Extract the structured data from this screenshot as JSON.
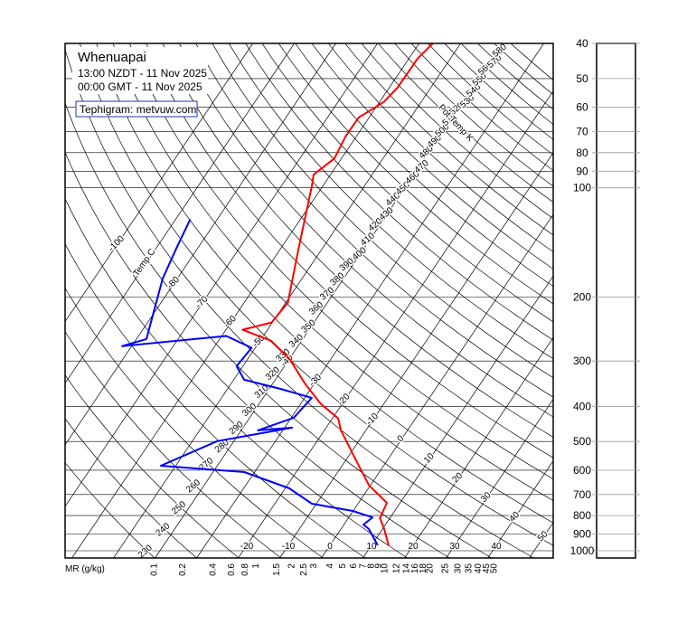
{
  "chart_data": {
    "type": "tephigram",
    "title": "Whenuapai",
    "subtitle": [
      "13:00 NZDT - 11 Nov 2025",
      "00:00 GMT - 11 Nov 2025"
    ],
    "source_label": "Tephigram: metvuw.com",
    "isotherm_title": "Temp C",
    "adiabat_title": "Pot Temp K",
    "mixing_ratio_title": "MR (g/kg)",
    "log_y": true,
    "ylim": [
      1047,
      40
    ],
    "yticks": [
      40,
      50,
      60,
      70,
      80,
      90,
      100,
      200,
      300,
      400,
      500,
      600,
      700,
      800,
      900,
      1000
    ],
    "isotherms": [
      -100,
      -90,
      -80,
      -70,
      -60,
      -50,
      -40,
      -30,
      -20,
      -10,
      0,
      10,
      20,
      30,
      40,
      50
    ],
    "dry_adiabats": [
      230,
      240,
      250,
      260,
      270,
      280,
      290,
      300,
      310,
      320,
      330,
      340,
      350,
      360,
      370,
      380,
      390,
      400,
      410,
      420,
      430,
      440,
      450,
      460,
      470,
      480,
      490,
      500,
      510,
      520,
      530,
      540,
      550,
      560,
      570,
      580,
      590
    ],
    "mixing_ratios": [
      0.1,
      0.2,
      0.4,
      0.6,
      0.8,
      1,
      1.5,
      2,
      2.5,
      3,
      4,
      5,
      6,
      7,
      8,
      9,
      10,
      12,
      14,
      16,
      18,
      20,
      25,
      30,
      35,
      40,
      45,
      50
    ],
    "series": [
      {
        "color": "#ff0000",
        "pressure": [
          966,
          871,
          813,
          738,
          661,
          560,
          466,
          432,
          394,
          348,
          296,
          264,
          246,
          235,
          207,
          147,
          98,
          92,
          83,
          72,
          64,
          58,
          53,
          44,
          40
        ],
        "values": [
          14.1,
          10.4,
          7.6,
          6.8,
          -0.3,
          -7.8,
          -16.0,
          -18.6,
          -25.1,
          -32.0,
          -40.0,
          -47.3,
          -56.0,
          -50.2,
          -49.5,
          -55.7,
          -62.8,
          -64.1,
          -61.7,
          -62.6,
          -62.5,
          -59.0,
          -58.0,
          -57.9,
          -56.7
        ]
      },
      {
        "color": "#0000ff",
        "pressure": [
          966,
          871,
          847,
          809,
          777,
          742,
          673,
          607,
          583,
          499,
          458,
          466,
          430,
          379,
          358,
          338,
          310,
          276,
          256,
          273,
          261,
          178,
          147,
          122
        ],
        "values": [
          11.5,
          6.7,
          4.7,
          5.7,
          -0.1,
          -11.1,
          -19.0,
          -32.5,
          -53.6,
          -44.0,
          -28.2,
          -36.0,
          -29.4,
          -28.3,
          -37.3,
          -47.5,
          -51.5,
          -50.9,
          -58.9,
          -82.3,
          -77.6,
          -83.5,
          -85.1,
          -86.5
        ]
      }
    ]
  }
}
